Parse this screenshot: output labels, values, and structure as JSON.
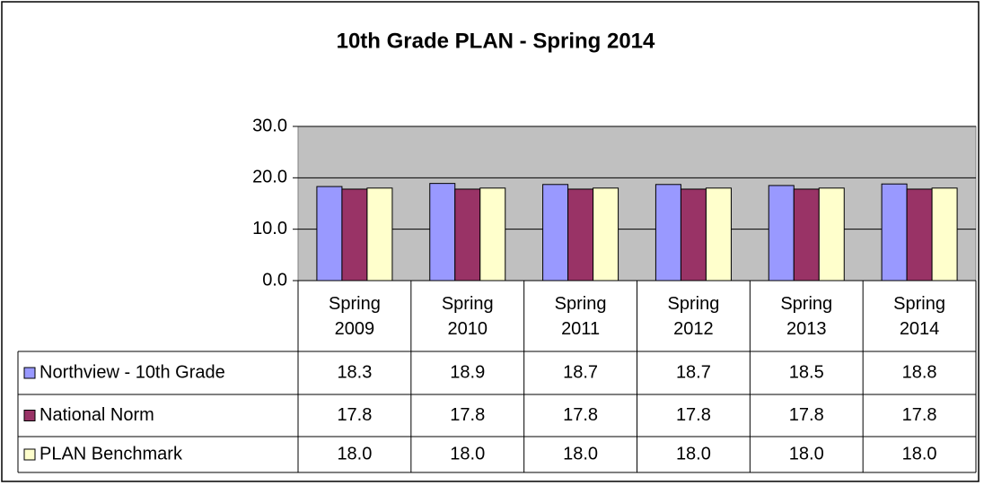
{
  "chart_data": {
    "type": "bar",
    "title": "10th Grade PLAN - Spring 2014",
    "categories": [
      "Spring 2009",
      "Spring 2010",
      "Spring 2011",
      "Spring 2012",
      "Spring 2013",
      "Spring 2014"
    ],
    "series": [
      {
        "name": "Northview - 10th Grade",
        "color": "#9999ff",
        "values": [
          18.3,
          18.9,
          18.7,
          18.7,
          18.5,
          18.8
        ],
        "value_labels": [
          "18.3",
          "18.9",
          "18.7",
          "18.7",
          "18.5",
          "18.8"
        ]
      },
      {
        "name": "National Norm",
        "color": "#993366",
        "values": [
          17.8,
          17.8,
          17.8,
          17.8,
          17.8,
          17.8
        ],
        "value_labels": [
          "17.8",
          "17.8",
          "17.8",
          "17.8",
          "17.8",
          "17.8"
        ]
      },
      {
        "name": "PLAN Benchmark",
        "color": "#ffffcc",
        "values": [
          18.0,
          18.0,
          18.0,
          18.0,
          18.0,
          18.0
        ],
        "value_labels": [
          "18.0",
          "18.0",
          "18.0",
          "18.0",
          "18.0",
          "18.0"
        ]
      }
    ],
    "ylim": [
      0,
      30
    ],
    "yticks": [
      {
        "value": 0,
        "label": "0.0"
      },
      {
        "value": 10,
        "label": "10.0"
      },
      {
        "value": 20,
        "label": "20.0"
      },
      {
        "value": 30,
        "label": "30.0"
      }
    ],
    "grid": true,
    "plot_background": "#c0c0c0"
  }
}
